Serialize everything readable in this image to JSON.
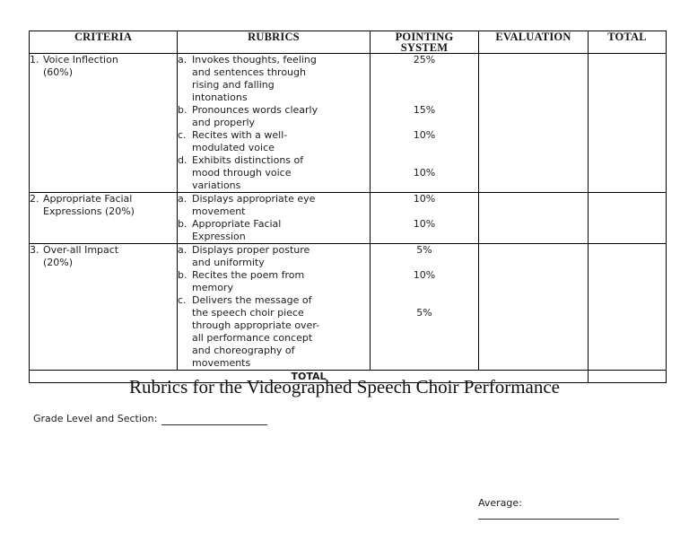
{
  "title": "Rubrics for the Videographed Speech Choir Performance",
  "table": {
    "headers": [
      "CRITERIA",
      "RUBRICS",
      "POINTING SYSTEM",
      "EVALUATION",
      "TOTAL"
    ],
    "rows": [
      {
        "number": "1.",
        "criteria_lines": [
          "Voice Inflection",
          "(60%)"
        ],
        "rubrics": [
          {
            "marker": "a.",
            "lines": [
              "Invokes thoughts, feeling",
              "and sentences through",
              "rising and falling",
              "intonations"
            ]
          },
          {
            "marker": "b.",
            "lines": [
              "Pronounces words clearly",
              "and properly"
            ]
          },
          {
            "marker": "c.",
            "lines": [
              "Recites with a well-",
              "modulated voice"
            ]
          },
          {
            "marker": "d.",
            "lines": [
              "Exhibits distinctions of",
              "mood through voice",
              "variations"
            ]
          }
        ],
        "points": [
          {
            "value": "25%",
            "line": 0
          },
          {
            "value": "15%",
            "line": 4
          },
          {
            "value": "10%",
            "line": 6
          },
          {
            "value": "10%",
            "line": 9
          }
        ]
      },
      {
        "number": "2.",
        "criteria_lines": [
          "Appropriate Facial",
          "Expressions (20%)"
        ],
        "rubrics": [
          {
            "marker": "a.",
            "lines": [
              "Displays appropriate eye",
              "movement"
            ]
          },
          {
            "marker": "b.",
            "lines": [
              "Appropriate Facial",
              "Expression"
            ]
          }
        ],
        "points": [
          {
            "value": "10%",
            "line": 0
          },
          {
            "value": "10%",
            "line": 2
          }
        ]
      },
      {
        "number": "3.",
        "criteria_lines": [
          "Over-all Impact",
          "(20%)"
        ],
        "rubrics": [
          {
            "marker": "a.",
            "lines": [
              "Displays proper posture",
              "and uniformity"
            ]
          },
          {
            "marker": "b.",
            "lines": [
              "Recites the poem from",
              "memory"
            ]
          },
          {
            "marker": "c.",
            "lines": [
              "Delivers the message of",
              "the speech choir piece",
              "through appropriate over-",
              "all performance concept",
              "and choreography of",
              "movements"
            ]
          }
        ],
        "points": [
          {
            "value": "5%",
            "line": 0
          },
          {
            "value": "10%",
            "line": 2
          },
          {
            "value": "5%",
            "line": 5
          }
        ]
      }
    ],
    "total_label": "TOTAL"
  },
  "fields": {
    "grade_section_label": "Grade Level and Section:",
    "average_label": "Average:"
  },
  "colors": {
    "background": "#ffffff",
    "text": "#1c1c1c",
    "border": "#000000"
  }
}
